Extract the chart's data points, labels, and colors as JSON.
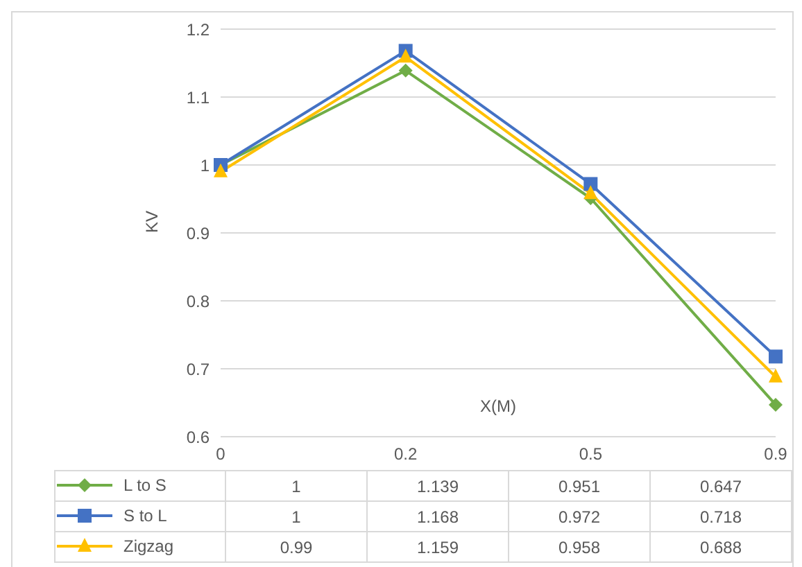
{
  "chart_data": {
    "type": "line",
    "xlabel": "X(M)",
    "ylabel": "KV",
    "categories": [
      "0",
      "0.2",
      "0.5",
      "0.9"
    ],
    "series": [
      {
        "name": "L to S",
        "color": "#70ad47",
        "marker": "diamond",
        "values": [
          1,
          1.139,
          0.951,
          0.647
        ]
      },
      {
        "name": "S to L",
        "color": "#4472c4",
        "marker": "square",
        "values": [
          1,
          1.168,
          0.972,
          0.718
        ]
      },
      {
        "name": "Zigzag",
        "color": "#ffc000",
        "marker": "triangle",
        "values": [
          0.99,
          1.159,
          0.958,
          0.688
        ]
      }
    ],
    "ylim": [
      0.6,
      1.2
    ],
    "yticks": [
      0.6,
      0.7,
      0.8,
      0.9,
      1,
      1.1,
      1.2
    ],
    "grid": "y",
    "legend": "bottom",
    "data_labels": true
  }
}
